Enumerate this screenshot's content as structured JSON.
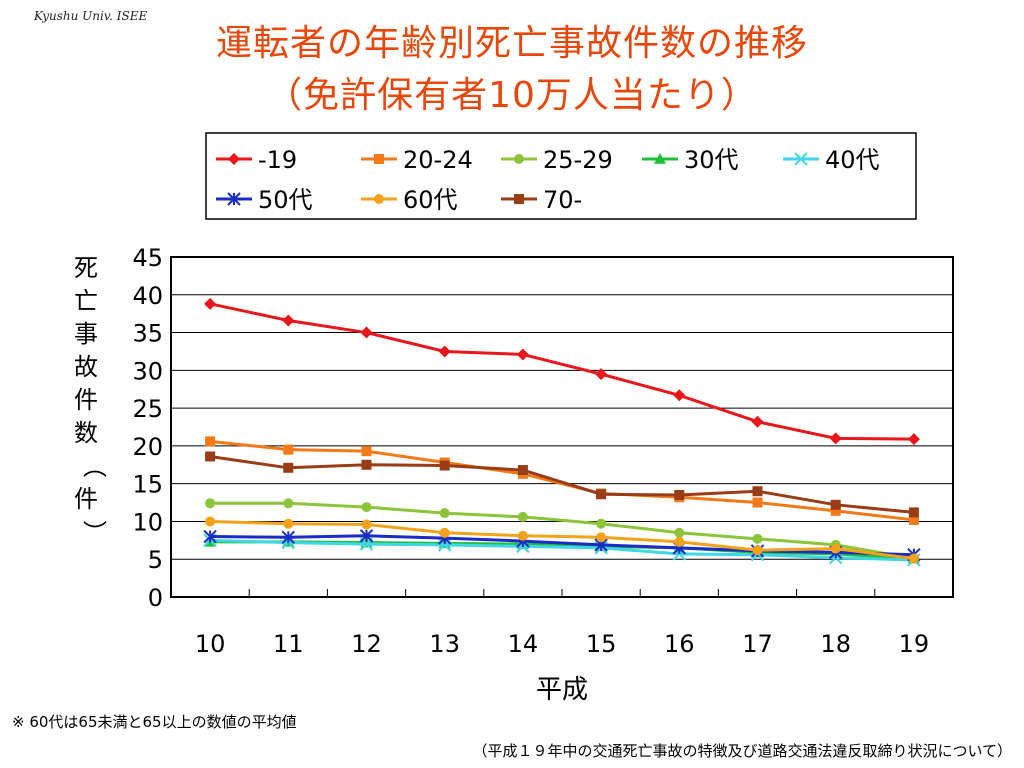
{
  "header": {
    "credit": "Kyushu Univ. ISEE",
    "title_line1": "運転者の年齢別死亡事故件数の推移",
    "title_line2": "（免許保有者10万人当たり）"
  },
  "footer": {
    "note": "※ 60代は65未満と65以上の数値の平均値",
    "source": "（平成１９年中の交通死亡事故の特徴及び道路交通法違反取締り状況について）"
  },
  "chart_data": {
    "type": "line",
    "title": "運転者の年齢別死亡事故件数の推移（免許保有者10万人当たり）",
    "xlabel": "平成",
    "ylabel": "死亡事故件数（件）",
    "categories": [
      "10",
      "11",
      "12",
      "13",
      "14",
      "15",
      "16",
      "17",
      "18",
      "19"
    ],
    "ylim": [
      0,
      45
    ],
    "yticks": [
      0,
      5,
      10,
      15,
      20,
      25,
      30,
      35,
      40,
      45
    ],
    "grid": true,
    "legend_position": "top",
    "series": [
      {
        "name": "-19",
        "color": "#e8171b",
        "marker": "diamond",
        "values": [
          38.8,
          36.6,
          35.0,
          32.5,
          32.1,
          29.5,
          26.7,
          23.2,
          21.0,
          20.9
        ]
      },
      {
        "name": "20-24",
        "color": "#f47a19",
        "marker": "square",
        "values": [
          20.6,
          19.5,
          19.3,
          17.8,
          16.3,
          13.7,
          13.2,
          12.5,
          11.4,
          10.2
        ]
      },
      {
        "name": "25-29",
        "color": "#8cc43a",
        "marker": "circle",
        "values": [
          12.4,
          12.4,
          11.9,
          11.1,
          10.6,
          9.7,
          8.5,
          7.7,
          6.9,
          5.1
        ]
      },
      {
        "name": "30代",
        "color": "#1fbf3a",
        "marker": "triangle",
        "values": [
          7.3,
          7.3,
          7.2,
          7.1,
          7.0,
          6.7,
          6.5,
          5.9,
          5.7,
          5.1
        ]
      },
      {
        "name": "40代",
        "color": "#3fd6e6",
        "marker": "x",
        "values": [
          7.5,
          7.2,
          7.0,
          6.9,
          6.7,
          6.5,
          5.7,
          5.6,
          5.2,
          4.9
        ]
      },
      {
        "name": "50代",
        "color": "#1a2cc4",
        "marker": "star",
        "values": [
          8.0,
          7.9,
          8.1,
          7.8,
          7.4,
          6.9,
          6.5,
          6.1,
          5.9,
          5.6
        ]
      },
      {
        "name": "60代",
        "color": "#f4a21a",
        "marker": "circle",
        "values": [
          10.0,
          9.7,
          9.6,
          8.5,
          8.1,
          7.9,
          7.3,
          6.2,
          6.4,
          5.1
        ]
      },
      {
        "name": "70-",
        "color": "#993d17",
        "marker": "square",
        "values": [
          18.6,
          17.1,
          17.5,
          17.4,
          16.8,
          13.6,
          13.5,
          14.0,
          12.2,
          11.2
        ]
      }
    ]
  }
}
